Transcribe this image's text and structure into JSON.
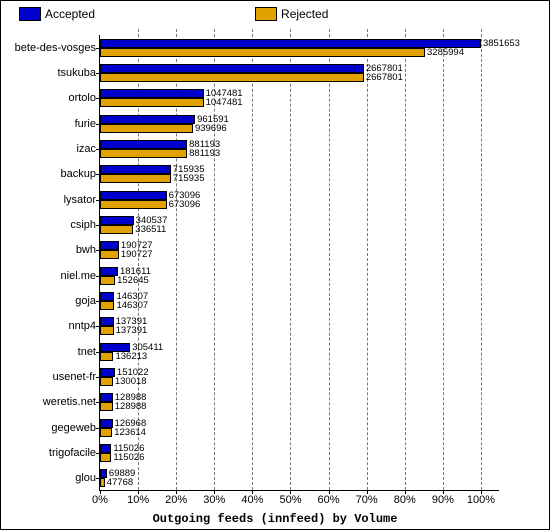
{
  "chart": {
    "type": "bar",
    "orientation": "horizontal",
    "stacked": false,
    "title": "Outgoing feeds (innfeed) by Volume",
    "background_color": "#ffffff",
    "grid_color": "#777777",
    "grid_dash": "dashed",
    "x_axis": {
      "label_suffix": "%",
      "min": 0,
      "max": 105,
      "tick_step": 10,
      "ticks": [
        0,
        10,
        20,
        30,
        40,
        50,
        60,
        70,
        80,
        90,
        100
      ]
    },
    "scale_max": 3851653,
    "legend": {
      "items": [
        {
          "key": "accepted",
          "label": "Accepted",
          "color": "#0000cc"
        },
        {
          "key": "rejected",
          "label": "Rejected",
          "color": "#e1a100"
        }
      ]
    },
    "series_colors": {
      "accepted": "#0000cc",
      "rejected": "#e1a100"
    },
    "rows": [
      {
        "label": "bete-des-vosges",
        "accepted": 3851653,
        "rejected": 3285994
      },
      {
        "label": "tsukuba",
        "accepted": 2667801,
        "rejected": 2667801
      },
      {
        "label": "ortolo",
        "accepted": 1047481,
        "rejected": 1047481
      },
      {
        "label": "furie",
        "accepted": 961591,
        "rejected": 939696
      },
      {
        "label": "izac",
        "accepted": 881193,
        "rejected": 881193
      },
      {
        "label": "backup",
        "accepted": 715935,
        "rejected": 715935
      },
      {
        "label": "lysator",
        "accepted": 673096,
        "rejected": 673096
      },
      {
        "label": "csiph",
        "accepted": 340537,
        "rejected": 336511
      },
      {
        "label": "bwh",
        "accepted": 190727,
        "rejected": 190727
      },
      {
        "label": "niel.me",
        "accepted": 181611,
        "rejected": 152645
      },
      {
        "label": "goja",
        "accepted": 146307,
        "rejected": 146307
      },
      {
        "label": "nntp4",
        "accepted": 137391,
        "rejected": 137391
      },
      {
        "label": "tnet",
        "accepted": 305411,
        "rejected": 136213
      },
      {
        "label": "usenet-fr",
        "accepted": 151022,
        "rejected": 130018
      },
      {
        "label": "weretis.net",
        "accepted": 128988,
        "rejected": 128988
      },
      {
        "label": "gegeweb",
        "accepted": 126968,
        "rejected": 123614
      },
      {
        "label": "trigofacile",
        "accepted": 115026,
        "rejected": 115026
      },
      {
        "label": "glou",
        "accepted": 69889,
        "rejected": 47768
      }
    ]
  }
}
